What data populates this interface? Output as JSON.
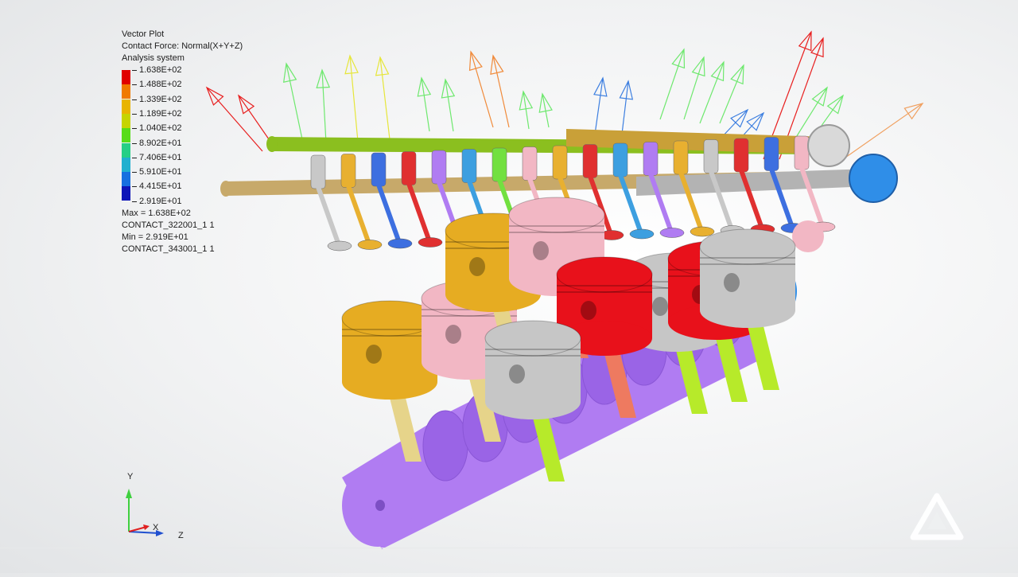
{
  "legend": {
    "title": "Vector Plot",
    "result_type": "Contact Force: Normal(X+Y+Z)",
    "coordinate_system": "Analysis system",
    "levels": [
      "1.638E+02",
      "1.488E+02",
      "1.339E+02",
      "1.189E+02",
      "1.040E+02",
      "8.902E+01",
      "7.406E+01",
      "5.910E+01",
      "4.415E+01",
      "2.919E+01"
    ],
    "band_colors": [
      "#e00000",
      "#f07a00",
      "#e8b400",
      "#c6d400",
      "#58dc18",
      "#26cf86",
      "#20b0cf",
      "#1670e0",
      "#0e16b8"
    ],
    "max_line": "Max = 1.638E+02",
    "max_entity": "CONTACT_322001_1 1",
    "min_line": "Min = 2.919E+01",
    "min_entity": "CONTACT_343001_1 1"
  },
  "triad": {
    "y_label": "Y",
    "x_label": "X",
    "z_label": "Z"
  },
  "model": {
    "colors": {
      "crankshaft": "#b07cf2",
      "cam_green": "#8bbf1f",
      "cam_gold": "#c9a038",
      "cam_tan": "#c7a96a",
      "cam_gray": "#b3b3b3",
      "piston_gold": "#e6ac22",
      "piston_pink": "#f2b7c4",
      "piston_red": "#e8111b",
      "piston_gray": "#c6c6c6",
      "pulley_blue": "#2f8ee8",
      "rod_yellow": "#e6d48a",
      "rod_lime": "#b7ea2a",
      "rod_salmon": "#ee7a60"
    }
  },
  "logo": {
    "icon": "altair-logo-icon"
  }
}
